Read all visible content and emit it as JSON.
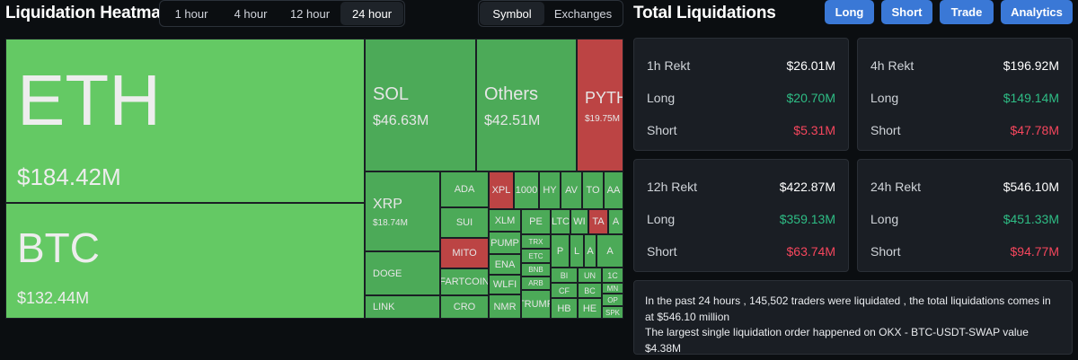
{
  "heatmap": {
    "title": "Liquidation Heatmap",
    "timeframes": [
      "1 hour",
      "4 hour",
      "12 hour",
      "24 hour"
    ],
    "active_timeframe": "24 hour",
    "views": [
      "Symbol",
      "Exchanges"
    ],
    "active_view": "Symbol",
    "tiles": [
      {
        "symbol": "ETH",
        "value": "$184.42M",
        "status": "long"
      },
      {
        "symbol": "BTC",
        "value": "$132.44M",
        "status": "long"
      },
      {
        "symbol": "SOL",
        "value": "$46.63M",
        "status": "long"
      },
      {
        "symbol": "Others",
        "value": "$42.51M",
        "status": "long"
      },
      {
        "symbol": "PYTH",
        "value": "$19.75M",
        "status": "short"
      },
      {
        "symbol": "XRP",
        "value": "$18.74M",
        "status": "long"
      },
      {
        "symbol": "DOGE",
        "status": "long"
      },
      {
        "symbol": "LINK",
        "status": "long"
      },
      {
        "symbol": "ADA",
        "status": "long"
      },
      {
        "symbol": "SUI",
        "status": "long"
      },
      {
        "symbol": "MITO",
        "status": "short"
      },
      {
        "symbol": "FARTCOIN",
        "status": "long"
      },
      {
        "symbol": "CRO",
        "status": "long"
      },
      {
        "symbol": "XPL",
        "status": "short"
      },
      {
        "symbol": "1000",
        "status": "long"
      },
      {
        "symbol": "HY",
        "status": "long"
      },
      {
        "symbol": "AV",
        "status": "long"
      },
      {
        "symbol": "TO",
        "status": "long"
      },
      {
        "symbol": "AA",
        "status": "long"
      },
      {
        "symbol": "XLM",
        "status": "long"
      },
      {
        "symbol": "PUMP",
        "status": "long"
      },
      {
        "symbol": "ENA",
        "status": "long"
      },
      {
        "symbol": "WLFI",
        "status": "long"
      },
      {
        "symbol": "NMR",
        "status": "long"
      },
      {
        "symbol": "PE",
        "status": "long"
      },
      {
        "symbol": "LTC",
        "status": "long"
      },
      {
        "symbol": "WI",
        "status": "long"
      },
      {
        "symbol": "TA",
        "status": "short"
      },
      {
        "symbol": "A",
        "status": "long"
      },
      {
        "symbol": "TRX",
        "status": "long"
      },
      {
        "symbol": "ETC",
        "status": "long"
      },
      {
        "symbol": "BNB",
        "status": "long"
      },
      {
        "symbol": "ARB",
        "status": "long"
      },
      {
        "symbol": "TRUMP",
        "status": "long"
      },
      {
        "symbol": "P",
        "status": "long"
      },
      {
        "symbol": "L",
        "status": "long"
      },
      {
        "symbol": "A",
        "status": "long"
      },
      {
        "symbol": "A",
        "status": "long"
      },
      {
        "symbol": "BI",
        "status": "long"
      },
      {
        "symbol": "UN",
        "status": "long"
      },
      {
        "symbol": "1C",
        "status": "long"
      },
      {
        "symbol": "CF",
        "status": "long"
      },
      {
        "symbol": "BC",
        "status": "long"
      },
      {
        "symbol": "MN",
        "status": "long"
      },
      {
        "symbol": "HB",
        "status": "long"
      },
      {
        "symbol": "HE",
        "status": "long"
      },
      {
        "symbol": "OP",
        "status": "long"
      },
      {
        "symbol": "SPK",
        "status": "long"
      }
    ]
  },
  "colors": {
    "long_big": "#64c964",
    "long": "#4caa58",
    "short": "#bc4444",
    "button": "#3a78d6",
    "positive": "#2ebd85",
    "negative": "#f6465d"
  },
  "totals": {
    "title": "Total Liquidations",
    "buttons": [
      "Long",
      "Short",
      "Trade",
      "Analytics"
    ],
    "panels": [
      {
        "title": "1h Rekt",
        "total": "$26.01M",
        "long_label": "Long",
        "long": "$20.70M",
        "short_label": "Short",
        "short": "$5.31M"
      },
      {
        "title": "4h Rekt",
        "total": "$196.92M",
        "long_label": "Long",
        "long": "$149.14M",
        "short_label": "Short",
        "short": "$47.78M"
      },
      {
        "title": "12h Rekt",
        "total": "$422.87M",
        "long_label": "Long",
        "long": "$359.13M",
        "short_label": "Short",
        "short": "$63.74M"
      },
      {
        "title": "24h Rekt",
        "total": "$546.10M",
        "long_label": "Long",
        "long": "$451.33M",
        "short_label": "Short",
        "short": "$94.77M"
      }
    ],
    "summary": [
      "In the past 24 hours , 145,502 traders were liquidated , the total liquidations comes in at $546.10 million",
      "The largest single liquidation order happened on OKX - BTC-USDT-SWAP value $4.38M"
    ]
  }
}
